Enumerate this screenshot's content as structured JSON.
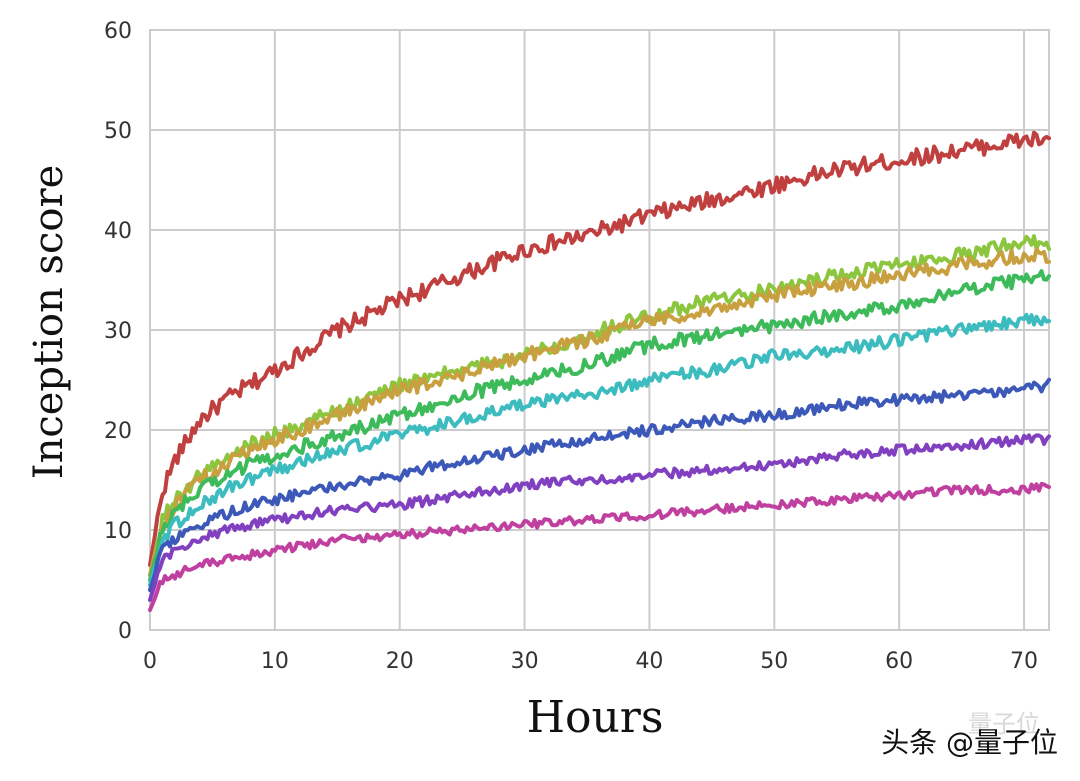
{
  "chart_data": {
    "type": "line",
    "xlabel": "Hours",
    "ylabel": "Inception score",
    "xlim": [
      0,
      72
    ],
    "ylim": [
      0,
      60
    ],
    "xticks": [
      0,
      10,
      20,
      30,
      40,
      50,
      60,
      70
    ],
    "yticks": [
      0,
      10,
      20,
      30,
      40,
      50,
      60
    ],
    "grid": true,
    "x": [
      0,
      1,
      2,
      4,
      6,
      8,
      10,
      15,
      20,
      25,
      30,
      35,
      40,
      45,
      50,
      55,
      60,
      65,
      70,
      72
    ],
    "series": [
      {
        "color": "#c0403f",
        "values": [
          6.5,
          14,
          17,
          21,
          23,
          24.5,
          26,
          30,
          33,
          35.5,
          38,
          39.5,
          41.5,
          43,
          44.5,
          46,
          47,
          48,
          49,
          49
        ]
      },
      {
        "color": "#8cc63f",
        "values": [
          5.5,
          11,
          13,
          15.5,
          17,
          18.5,
          19.5,
          22,
          24.5,
          26,
          27.5,
          29.5,
          31.5,
          33,
          34,
          35.5,
          36.5,
          37.5,
          39,
          38.5
        ]
      },
      {
        "color": "#c8a040",
        "values": [
          5.5,
          10.5,
          12.5,
          15,
          16.5,
          18,
          19,
          21.5,
          24,
          25.5,
          27.5,
          29,
          31,
          32,
          33.5,
          34.5,
          35.5,
          36.5,
          37.5,
          37.5
        ]
      },
      {
        "color": "#3dba5a",
        "values": [
          5,
          10,
          12,
          14,
          15.5,
          16.5,
          17.5,
          19.5,
          21.5,
          23.5,
          25,
          26.5,
          28.5,
          29.5,
          30.5,
          31.5,
          32.5,
          34,
          35,
          35.5
        ]
      },
      {
        "color": "#3dbcc0",
        "values": [
          4.5,
          9,
          10.5,
          12.5,
          14,
          15,
          16,
          18,
          19.5,
          21,
          22.5,
          23.5,
          25,
          26,
          27.5,
          28,
          29,
          30,
          31,
          31
        ]
      },
      {
        "color": "#3c58b8",
        "values": [
          4,
          8,
          9,
          10.5,
          11.5,
          12.5,
          13,
          14.5,
          15.5,
          17,
          18,
          19,
          20,
          21,
          21.5,
          22.5,
          23,
          23.5,
          24,
          24.5
        ]
      },
      {
        "color": "#8040c0",
        "values": [
          3,
          7,
          8,
          9,
          10,
          10.5,
          11,
          12,
          12.5,
          13.5,
          14.5,
          15,
          15.5,
          16,
          16.5,
          17.5,
          18,
          18.5,
          19,
          19
        ]
      },
      {
        "color": "#c040a0",
        "values": [
          2,
          5,
          5.5,
          6.5,
          7,
          7.5,
          8,
          9,
          9.5,
          10,
          10.5,
          11,
          11.5,
          12,
          12.5,
          13,
          13.5,
          14,
          14,
          14.5
        ]
      }
    ]
  },
  "watermark": {
    "text": "头条 @量子位",
    "faint_text": "量子位"
  }
}
